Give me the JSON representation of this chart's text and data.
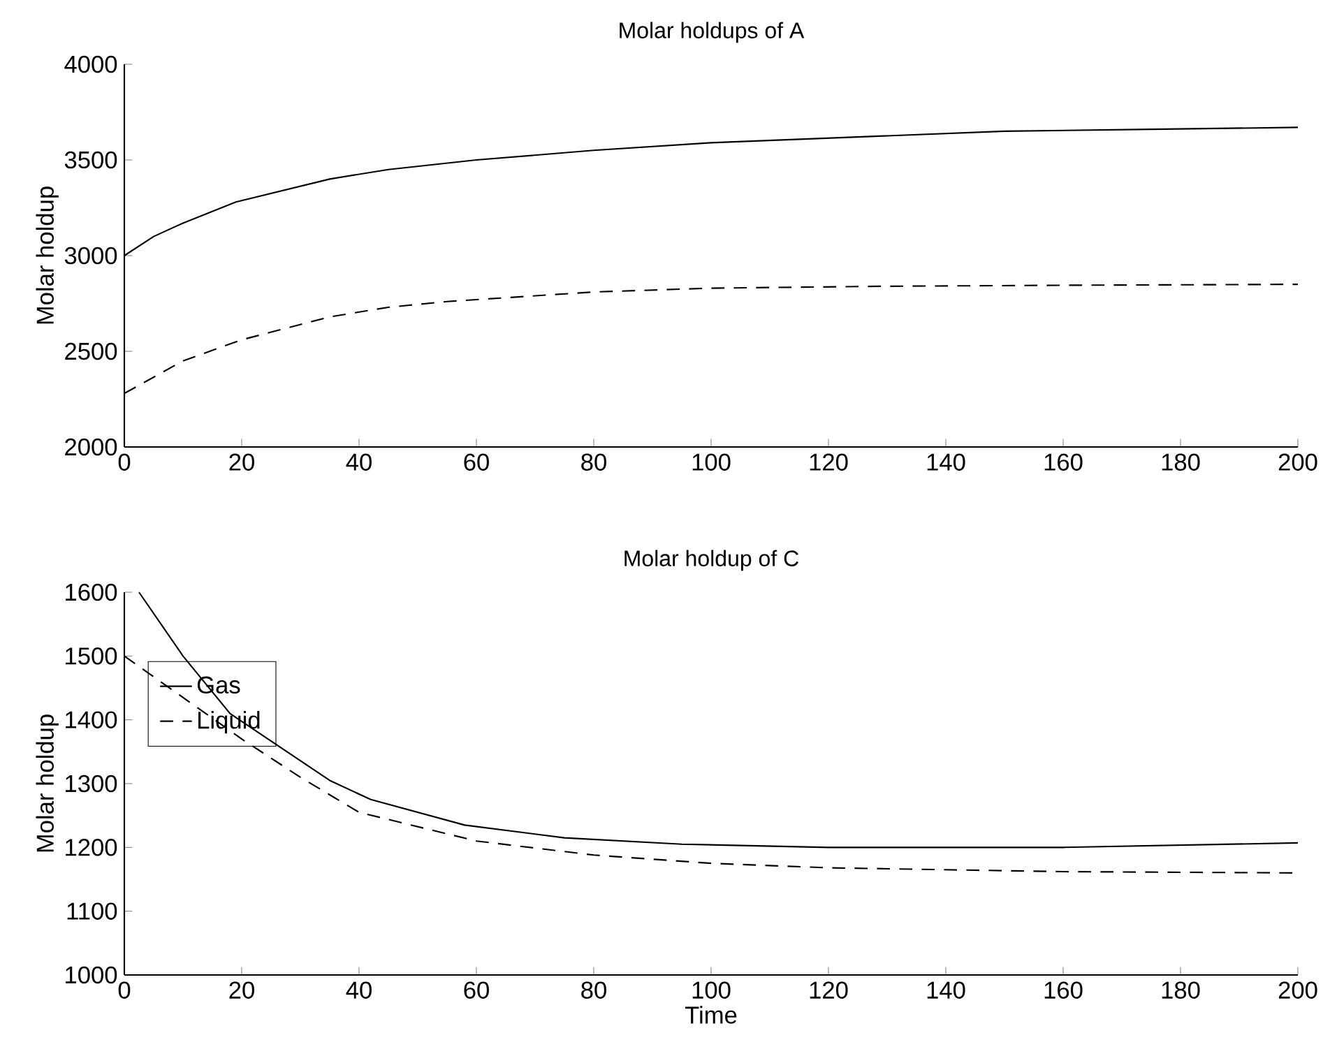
{
  "chart_data": [
    {
      "type": "line",
      "title": "Molar holdups of A",
      "ylabel": "Molar holdup",
      "xlim": [
        0,
        200
      ],
      "xticks": [
        0,
        20,
        40,
        60,
        80,
        100,
        120,
        140,
        160,
        180,
        200
      ],
      "ylim": [
        2000,
        4000
      ],
      "yticks": [
        2000,
        2500,
        3000,
        3500,
        4000
      ],
      "grid": false,
      "legend": false,
      "series": [
        {
          "color": "#000000",
          "line_style": "solid",
          "x": [
            0,
            5,
            10,
            19,
            35,
            45,
            60,
            80,
            100,
            125,
            150,
            175,
            200
          ],
          "values": [
            3000,
            3100,
            3170,
            3280,
            3400,
            3450,
            3500,
            3550,
            3590,
            3620,
            3650,
            3660,
            3670
          ]
        },
        {
          "color": "#000000",
          "line_style": "dashed",
          "x": [
            0,
            10,
            20,
            35,
            45,
            55,
            80,
            100,
            130,
            160,
            200
          ],
          "values": [
            2280,
            2450,
            2560,
            2680,
            2730,
            2760,
            2810,
            2830,
            2840,
            2845,
            2850
          ]
        }
      ]
    },
    {
      "type": "line",
      "title": "Molar holdup of C",
      "xlabel": "Time",
      "ylabel": "Molar holdup",
      "xlim": [
        0,
        200
      ],
      "xticks": [
        0,
        20,
        40,
        60,
        80,
        100,
        120,
        140,
        160,
        180,
        200
      ],
      "ylim": [
        1000,
        1600
      ],
      "yticks": [
        1000,
        1100,
        1200,
        1300,
        1400,
        1500,
        1600
      ],
      "grid": false,
      "legend": "top left",
      "series": [
        {
          "name": "Gas",
          "color": "#000000",
          "line_style": "solid",
          "x": [
            2.5,
            10,
            18,
            35,
            42,
            58,
            75,
            95,
            120,
            160,
            200
          ],
          "values": [
            1600,
            1500,
            1410,
            1305,
            1275,
            1235,
            1215,
            1205,
            1200,
            1200,
            1207
          ]
        },
        {
          "name": "Liquid",
          "color": "#000000",
          "line_style": "dashed",
          "x": [
            0,
            10,
            20,
            30,
            40,
            60,
            80,
            100,
            120,
            160,
            200
          ],
          "values": [
            1500,
            1435,
            1370,
            1310,
            1255,
            1210,
            1188,
            1175,
            1168,
            1162,
            1160
          ]
        }
      ]
    }
  ]
}
